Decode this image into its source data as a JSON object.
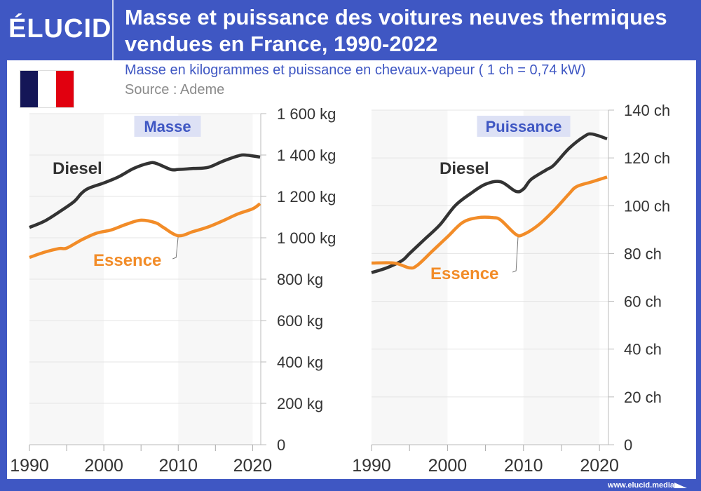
{
  "header": {
    "logo": "ÉLUCID",
    "title": "Masse et puissance des voitures neuves thermiques vendues en France, 1990-2022",
    "subtitle": "Masse en kilogrammes et puissance en chevaux-vapeur ( 1 ch = 0,74 kW)",
    "source": "Source : Ademe",
    "flag_colors": [
      "#141657",
      "#ffffff",
      "#e1000f"
    ]
  },
  "footer": {
    "url": "www.elucid.media"
  },
  "colors": {
    "frame": "#3f57c3",
    "diesel": "#333333",
    "essence": "#f28c28",
    "panel_label_bg": "#dde1f5",
    "panel_label_text": "#3f57c3"
  },
  "chart_data": [
    {
      "type": "line",
      "title": "Masse",
      "ylim": [
        0,
        1600
      ],
      "xlim": [
        1990,
        2021
      ],
      "yticks": [
        0,
        200,
        400,
        600,
        800,
        1000,
        1200,
        1400,
        1600
      ],
      "ytick_labels": [
        "0",
        "200 kg",
        "400 kg",
        "600 kg",
        "800 kg",
        "1 000 kg",
        "1 200 kg",
        "1 400 kg",
        "1 600 kg"
      ],
      "xtick_labels": [
        "1990",
        "2000",
        "2010",
        "2020"
      ],
      "grid": true,
      "series": [
        {
          "name": "Diesel",
          "x": [
            1990,
            1992,
            1994,
            1996,
            1997,
            1998,
            2000,
            2002,
            2004,
            2006,
            2007,
            2009,
            2010,
            2012,
            2014,
            2016,
            2018,
            2019,
            2021
          ],
          "values": [
            1050,
            1080,
            1125,
            1175,
            1215,
            1240,
            1265,
            1295,
            1335,
            1360,
            1360,
            1330,
            1330,
            1335,
            1340,
            1370,
            1395,
            1400,
            1390
          ]
        },
        {
          "name": "Essence",
          "x": [
            1990,
            1992,
            1994,
            1995,
            1997,
            1999,
            2001,
            2003,
            2005,
            2007,
            2008,
            2010,
            2012,
            2014,
            2016,
            2018,
            2020,
            2021
          ],
          "values": [
            905,
            930,
            948,
            950,
            990,
            1022,
            1038,
            1065,
            1085,
            1072,
            1050,
            1010,
            1030,
            1052,
            1082,
            1115,
            1140,
            1165
          ]
        }
      ]
    },
    {
      "type": "line",
      "title": "Puissance",
      "ylim": [
        0,
        140
      ],
      "xlim": [
        1990,
        2021
      ],
      "yticks": [
        0,
        20,
        40,
        60,
        80,
        100,
        120,
        140
      ],
      "ytick_labels": [
        "0",
        "20 ch",
        "40 ch",
        "60 ch",
        "80 ch",
        "100 ch",
        "120 ch",
        "140 ch"
      ],
      "xtick_labels": [
        "1990",
        "2000",
        "2010",
        "2020"
      ],
      "grid": true,
      "series": [
        {
          "name": "Diesel",
          "x": [
            1990,
            1992,
            1994,
            1995,
            1997,
            1999,
            2001,
            2003,
            2005,
            2007,
            2009,
            2010,
            2011,
            2013,
            2014,
            2016,
            2018,
            2019,
            2021
          ],
          "values": [
            72,
            74,
            77,
            80,
            86,
            92,
            100,
            105,
            109,
            110,
            106,
            107,
            111,
            115,
            117,
            124,
            129,
            130,
            128
          ]
        },
        {
          "name": "Essence",
          "x": [
            1990,
            1993,
            1995,
            1996,
            1998,
            2000,
            2002,
            2004,
            2006,
            2007,
            2009,
            2010,
            2012,
            2014,
            2016,
            2017,
            2019,
            2021
          ],
          "values": [
            76,
            76,
            74,
            75,
            81,
            87,
            93,
            95,
            95,
            94,
            88,
            88,
            92,
            98,
            105,
            108,
            110,
            112
          ]
        }
      ]
    }
  ]
}
